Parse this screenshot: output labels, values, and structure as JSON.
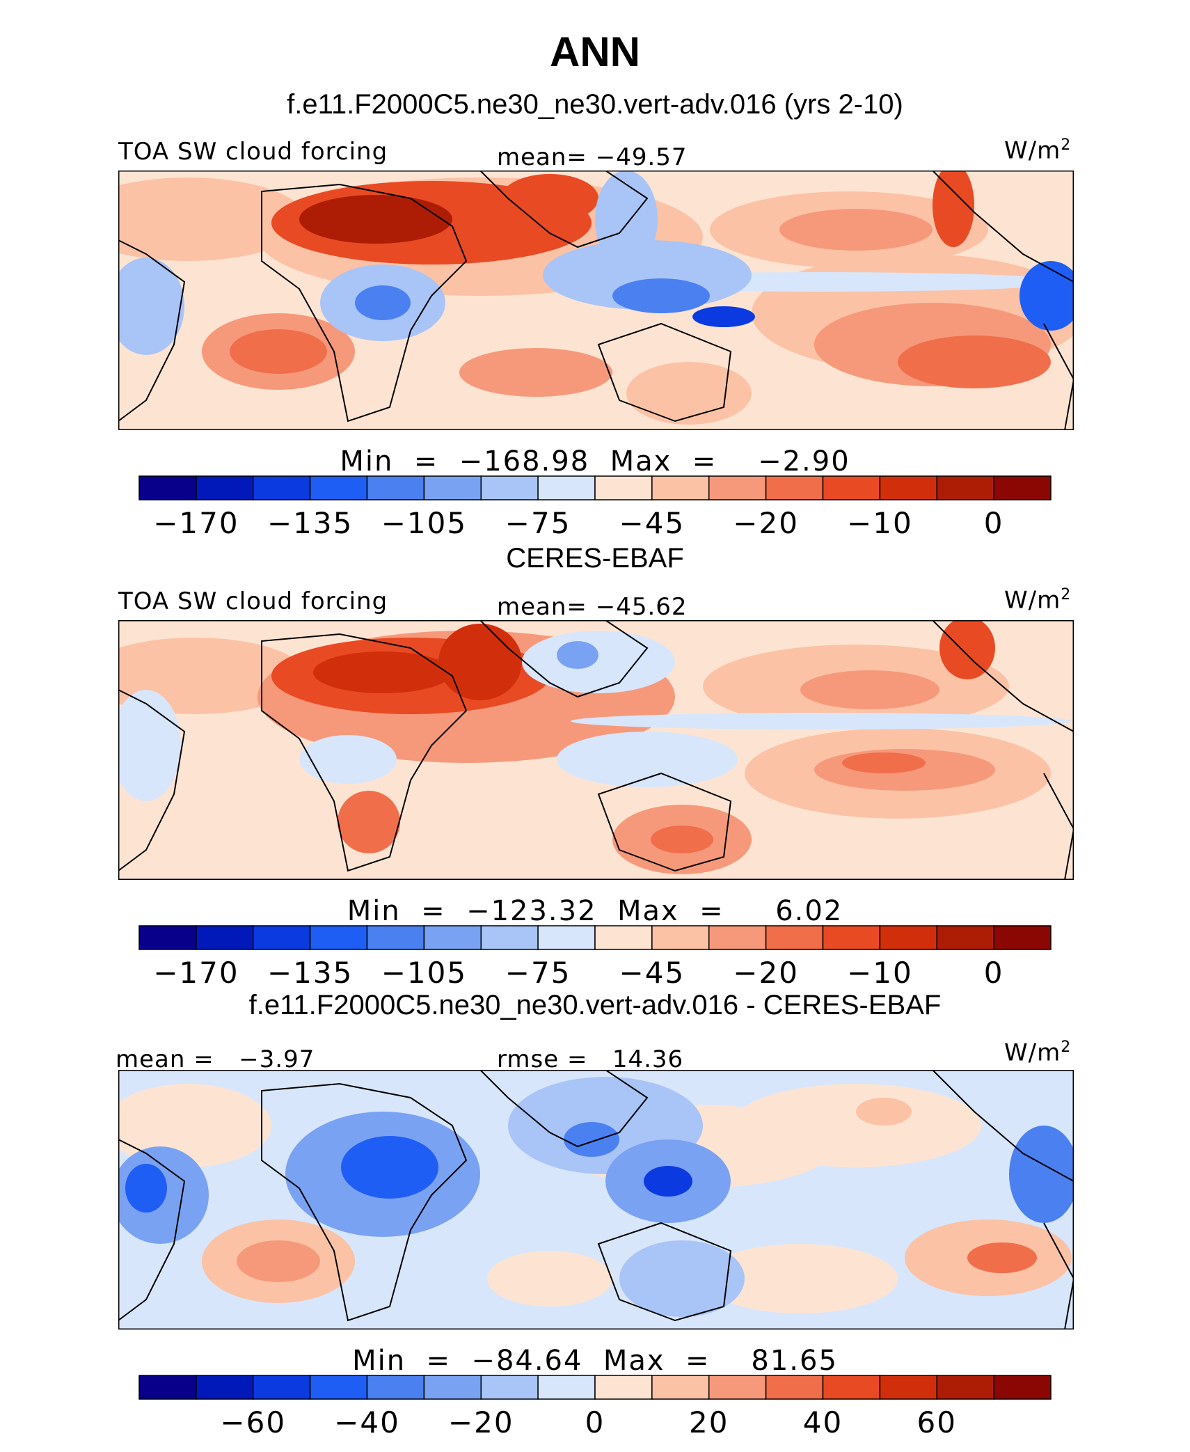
{
  "title": "ANN",
  "panel1": {
    "caption": "f.e11.F2000C5.ne30_ne30.vert-adv.016 (yrs 2-10)",
    "left_label": "TOA SW cloud forcing",
    "center_label": "mean= −49.57",
    "units_base": "W/m",
    "units_exp": "2",
    "min_max": "Min  =  −168.98  Max  =    −2.90"
  },
  "panel2": {
    "caption": "CERES-EBAF",
    "left_label": "TOA SW cloud forcing",
    "center_label": "mean= −45.62",
    "units_base": "W/m",
    "units_exp": "2",
    "min_max": "Min  =  −123.32  Max  =     6.02"
  },
  "panel3": {
    "caption": "f.e11.F2000C5.ne30_ne30.vert-adv.016 - CERES-EBAF",
    "left_label": "mean =   −3.97",
    "center_label": "rmse =   14.36",
    "units_base": "W/m",
    "units_exp": "2",
    "min_max": "Min  =  −84.64  Max  =    81.65"
  },
  "colorbar_colors": [
    "#08008a",
    "#0019b8",
    "#0a3ae0",
    "#1e5ef5",
    "#4a80f0",
    "#7aa2f2",
    "#a9c4f6",
    "#d8e6fb",
    "#fde4d2",
    "#fbc2a6",
    "#f6997a",
    "#f16e4b",
    "#e84a23",
    "#d12f0c",
    "#ad1d06",
    "#8a0703"
  ],
  "colorbar_top": {
    "ticks": [
      "−170",
      "−135",
      "−105",
      "−75",
      "−45",
      "−20",
      "−10",
      "0"
    ]
  },
  "colorbar_diff": {
    "ticks": [
      "−60",
      "−40",
      "−20",
      "0",
      "20",
      "40",
      "60"
    ]
  },
  "chart_data": [
    {
      "type": "heatmap",
      "title": "f.e11.F2000C5.ne30_ne30.vert-adv.016 (yrs 2-10)",
      "field": "TOA SW cloud forcing",
      "units": "W/m2",
      "mean": -49.57,
      "min": -168.98,
      "max": -2.9,
      "contour_levels": [
        -170,
        -135,
        -105,
        -75,
        -45,
        -20,
        -10,
        0
      ]
    },
    {
      "type": "heatmap",
      "title": "CERES-EBAF",
      "field": "TOA SW cloud forcing",
      "units": "W/m2",
      "mean": -45.62,
      "min": -123.32,
      "max": 6.02,
      "contour_levels": [
        -170,
        -135,
        -105,
        -75,
        -45,
        -20,
        -10,
        0
      ]
    },
    {
      "type": "heatmap",
      "title": "f.e11.F2000C5.ne30_ne30.vert-adv.016 - CERES-EBAF",
      "units": "W/m2",
      "mean": -3.97,
      "rmse": 14.36,
      "min": -84.64,
      "max": 81.65,
      "contour_levels": [
        -60,
        -40,
        -20,
        0,
        20,
        40,
        60
      ]
    }
  ]
}
